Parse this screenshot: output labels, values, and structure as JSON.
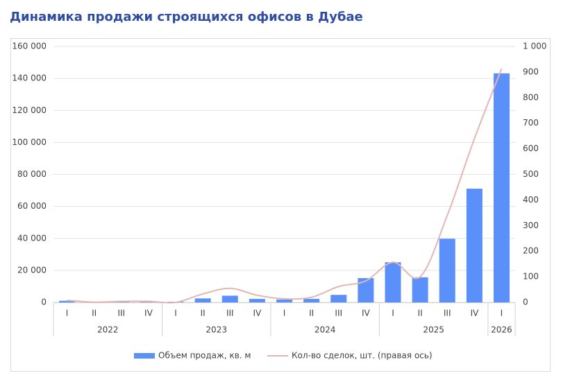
{
  "chart_data": {
    "type": "bar_line",
    "title": "Динамика продажи строящихся офисов в Дубае",
    "categories": [
      "I",
      "II",
      "III",
      "IV",
      "I",
      "II",
      "III",
      "IV",
      "I",
      "II",
      "III",
      "IV",
      "I",
      "II",
      "III",
      "IV",
      "I"
    ],
    "years": [
      "2022",
      null,
      null,
      null,
      "2023",
      null,
      null,
      null,
      "2024",
      null,
      null,
      null,
      "2025",
      null,
      null,
      null,
      "2026"
    ],
    "series": [
      {
        "name": "Объем продаж, кв. м",
        "type": "bar",
        "color": "#5b8ff9",
        "values": [
          1000,
          300,
          600,
          600,
          400,
          2500,
          4200,
          2200,
          1800,
          2200,
          4700,
          15200,
          25100,
          15700,
          39800,
          71100,
          143200
        ]
      },
      {
        "name": "Кол-во сделок, шт. (правая ось)",
        "type": "line",
        "axis": "y2",
        "color": "#e2b6b2",
        "values": [
          8,
          1,
          4,
          4,
          0,
          33,
          55,
          28,
          14,
          20,
          62,
          84,
          157,
          100,
          340,
          640,
          913
        ]
      }
    ],
    "ylim": [
      0,
      160000
    ],
    "yticks": [
      0,
      {
        "value": 20000,
        "label": "20 000"
      },
      {
        "value": 40000,
        "label": "40 000"
      },
      {
        "value": 60000,
        "label": "60 000"
      },
      {
        "value": 80000,
        "label": "80 000"
      },
      {
        "value": 100000,
        "label": "100 000"
      },
      {
        "value": 120000,
        "label": "120 000"
      },
      {
        "value": 140000,
        "label": "140 000"
      },
      {
        "value": 160000,
        "label": "160 000"
      }
    ],
    "y2lim": [
      0,
      1000
    ],
    "y2ticks": [
      0,
      100,
      200,
      300,
      400,
      500,
      600,
      700,
      800,
      900,
      {
        "value": 1000,
        "label": "1 000"
      }
    ],
    "grid": true,
    "legend": "bottom"
  }
}
